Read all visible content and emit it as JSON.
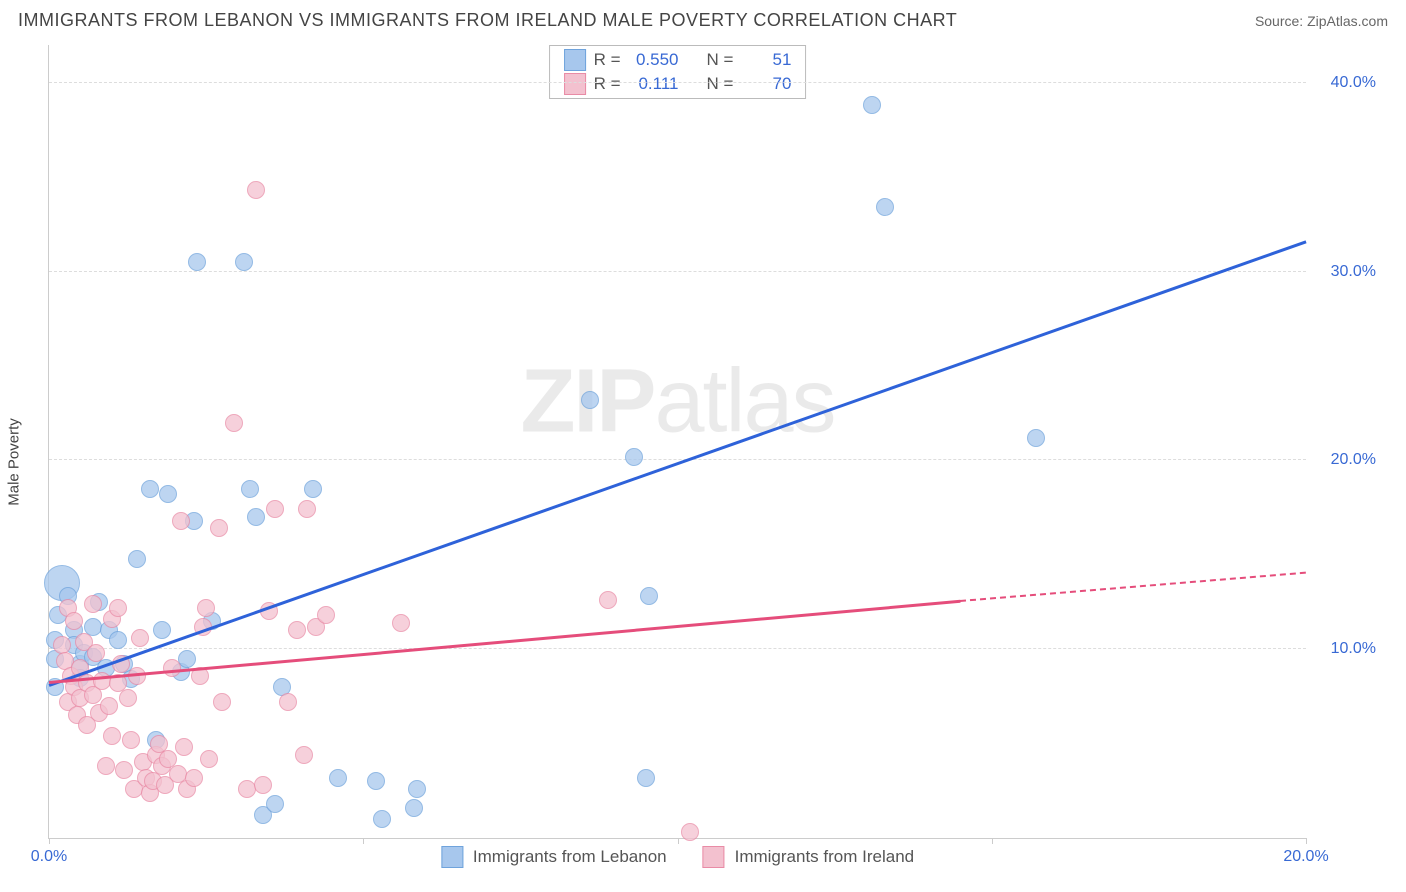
{
  "title": "IMMIGRANTS FROM LEBANON VS IMMIGRANTS FROM IRELAND MALE POVERTY CORRELATION CHART",
  "source": "Source: ZipAtlas.com",
  "ylabel": "Male Poverty",
  "watermark": "ZIPatlas",
  "chart": {
    "type": "scatter",
    "xlim": [
      0,
      20
    ],
    "ylim": [
      0,
      42
    ],
    "x_ticks": [
      0,
      5,
      10,
      15,
      20
    ],
    "x_tick_labels": [
      "0.0%",
      "",
      "",
      "",
      "20.0%"
    ],
    "y_gridlines": [
      10,
      20,
      30,
      40
    ],
    "y_tick_labels": [
      "10.0%",
      "20.0%",
      "30.0%",
      "40.0%"
    ],
    "x_tick_color": "#3869d4",
    "y_tick_color": "#3869d4",
    "background_color": "#ffffff",
    "grid_color": "#dddddd",
    "axis_color": "#cccccc"
  },
  "series": [
    {
      "name": "Immigrants from Lebanon",
      "color_fill": "#a7c7ed",
      "color_stroke": "#6fa3dc",
      "trend_color": "#2e62d9",
      "trend": {
        "x1": 0,
        "y1": 8.0,
        "x2": 20,
        "y2": 31.5,
        "dash_after_x": null
      },
      "stats": {
        "R": "0.550",
        "N": "51"
      },
      "marker_r": 9,
      "points": [
        [
          0.2,
          13.5,
          18
        ],
        [
          0.1,
          10.5
        ],
        [
          0.1,
          9.5
        ],
        [
          0.1,
          8.0
        ],
        [
          0.15,
          11.8
        ],
        [
          0.3,
          12.8
        ],
        [
          0.4,
          11.0
        ],
        [
          0.4,
          10.2
        ],
        [
          0.5,
          9.2
        ],
        [
          0.5,
          8.5
        ],
        [
          0.55,
          9.8
        ],
        [
          0.7,
          9.6
        ],
        [
          0.7,
          11.2
        ],
        [
          0.8,
          12.5
        ],
        [
          0.9,
          9.0
        ],
        [
          0.95,
          11.0
        ],
        [
          1.1,
          10.5
        ],
        [
          1.2,
          9.2
        ],
        [
          1.3,
          8.4
        ],
        [
          1.4,
          14.8
        ],
        [
          1.6,
          18.5
        ],
        [
          1.7,
          5.2
        ],
        [
          1.8,
          11.0
        ],
        [
          1.9,
          18.2
        ],
        [
          2.1,
          8.8
        ],
        [
          2.2,
          9.5
        ],
        [
          2.3,
          16.8
        ],
        [
          2.35,
          30.5
        ],
        [
          2.6,
          11.5
        ],
        [
          3.1,
          30.5
        ],
        [
          3.2,
          18.5
        ],
        [
          3.3,
          17.0
        ],
        [
          3.4,
          1.2
        ],
        [
          3.6,
          1.8
        ],
        [
          3.7,
          8.0
        ],
        [
          4.2,
          18.5
        ],
        [
          4.6,
          3.2
        ],
        [
          5.2,
          3.0
        ],
        [
          5.3,
          1.0
        ],
        [
          5.8,
          1.6
        ],
        [
          5.85,
          2.6
        ],
        [
          8.6,
          23.2
        ],
        [
          9.3,
          20.2
        ],
        [
          9.5,
          3.2
        ],
        [
          9.55,
          12.8
        ],
        [
          13.1,
          38.8
        ],
        [
          13.3,
          33.4
        ],
        [
          15.7,
          21.2
        ]
      ]
    },
    {
      "name": "Immigrants from Ireland",
      "color_fill": "#f3c1cf",
      "color_stroke": "#e98ba6",
      "trend_color": "#e54d7b",
      "trend": {
        "x1": 0,
        "y1": 8.2,
        "x2": 14.5,
        "y2": 12.5,
        "dash_after_x": 14.5,
        "dash_x2": 20,
        "dash_y2": 14.0
      },
      "stats": {
        "R": "0.111",
        "N": "70"
      },
      "marker_r": 9,
      "points": [
        [
          0.2,
          10.2
        ],
        [
          0.25,
          9.4
        ],
        [
          0.3,
          12.2
        ],
        [
          0.3,
          7.2
        ],
        [
          0.35,
          8.6
        ],
        [
          0.4,
          11.5
        ],
        [
          0.4,
          8.0
        ],
        [
          0.45,
          6.5
        ],
        [
          0.5,
          9.0
        ],
        [
          0.5,
          7.4
        ],
        [
          0.55,
          10.4
        ],
        [
          0.6,
          8.2
        ],
        [
          0.6,
          6.0
        ],
        [
          0.7,
          12.4
        ],
        [
          0.7,
          7.6
        ],
        [
          0.75,
          9.8
        ],
        [
          0.8,
          6.6
        ],
        [
          0.85,
          8.3
        ],
        [
          0.9,
          3.8
        ],
        [
          0.95,
          7.0
        ],
        [
          1.0,
          11.6
        ],
        [
          1.0,
          5.4
        ],
        [
          1.1,
          12.2
        ],
        [
          1.1,
          8.2
        ],
        [
          1.15,
          9.2
        ],
        [
          1.2,
          3.6
        ],
        [
          1.25,
          7.4
        ],
        [
          1.3,
          5.2
        ],
        [
          1.35,
          2.6
        ],
        [
          1.4,
          8.6
        ],
        [
          1.45,
          10.6
        ],
        [
          1.5,
          4.0
        ],
        [
          1.55,
          3.2
        ],
        [
          1.6,
          2.4
        ],
        [
          1.65,
          3.0
        ],
        [
          1.7,
          4.4
        ],
        [
          1.75,
          5.0
        ],
        [
          1.8,
          3.8
        ],
        [
          1.85,
          2.8
        ],
        [
          1.9,
          4.2
        ],
        [
          1.95,
          9.0
        ],
        [
          2.05,
          3.4
        ],
        [
          2.1,
          16.8
        ],
        [
          2.15,
          4.8
        ],
        [
          2.2,
          2.6
        ],
        [
          2.3,
          3.2
        ],
        [
          2.4,
          8.6
        ],
        [
          2.45,
          11.2
        ],
        [
          2.5,
          12.2
        ],
        [
          2.55,
          4.2
        ],
        [
          2.7,
          16.4
        ],
        [
          2.75,
          7.2
        ],
        [
          2.95,
          22.0
        ],
        [
          3.15,
          2.6
        ],
        [
          3.3,
          34.3
        ],
        [
          3.4,
          2.8
        ],
        [
          3.5,
          12.0
        ],
        [
          3.6,
          17.4
        ],
        [
          3.8,
          7.2
        ],
        [
          3.95,
          11.0
        ],
        [
          4.05,
          4.4
        ],
        [
          4.1,
          17.4
        ],
        [
          4.25,
          11.2
        ],
        [
          4.4,
          11.8
        ],
        [
          5.6,
          11.4
        ],
        [
          8.9,
          12.6
        ],
        [
          10.2,
          0.3
        ]
      ]
    }
  ],
  "stat_legend_labels": {
    "R": "R =",
    "N": "N ="
  },
  "bottom_legend": [
    {
      "label": "Immigrants from Lebanon",
      "series": 0
    },
    {
      "label": "Immigrants from Ireland",
      "series": 1
    }
  ]
}
